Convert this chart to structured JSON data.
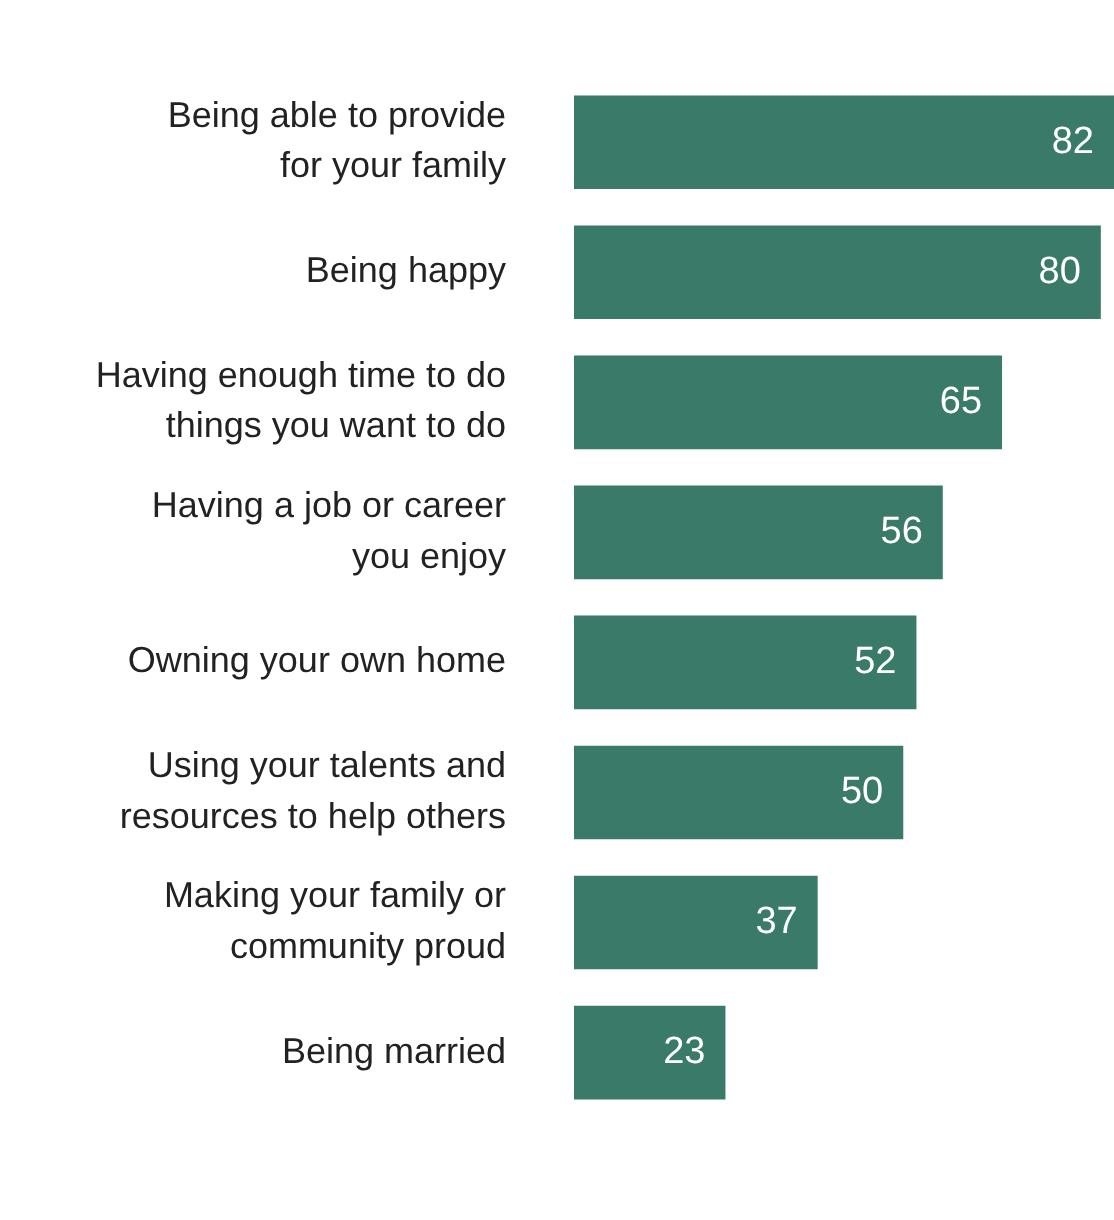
{
  "chart_data": {
    "type": "bar",
    "orientation": "horizontal",
    "categories": [
      "Being able to provide for your family",
      "Being happy",
      "Having enough time to do things you want to do",
      "Having a job or career you enjoy",
      "Owning your own home",
      "Using your talents and resources to help others",
      "Making your family or community proud",
      "Being married"
    ],
    "values": [
      82,
      80,
      65,
      56,
      52,
      50,
      37,
      23
    ],
    "color": "#3a7a68",
    "data_labels": true,
    "grid": false,
    "legend": false
  }
}
